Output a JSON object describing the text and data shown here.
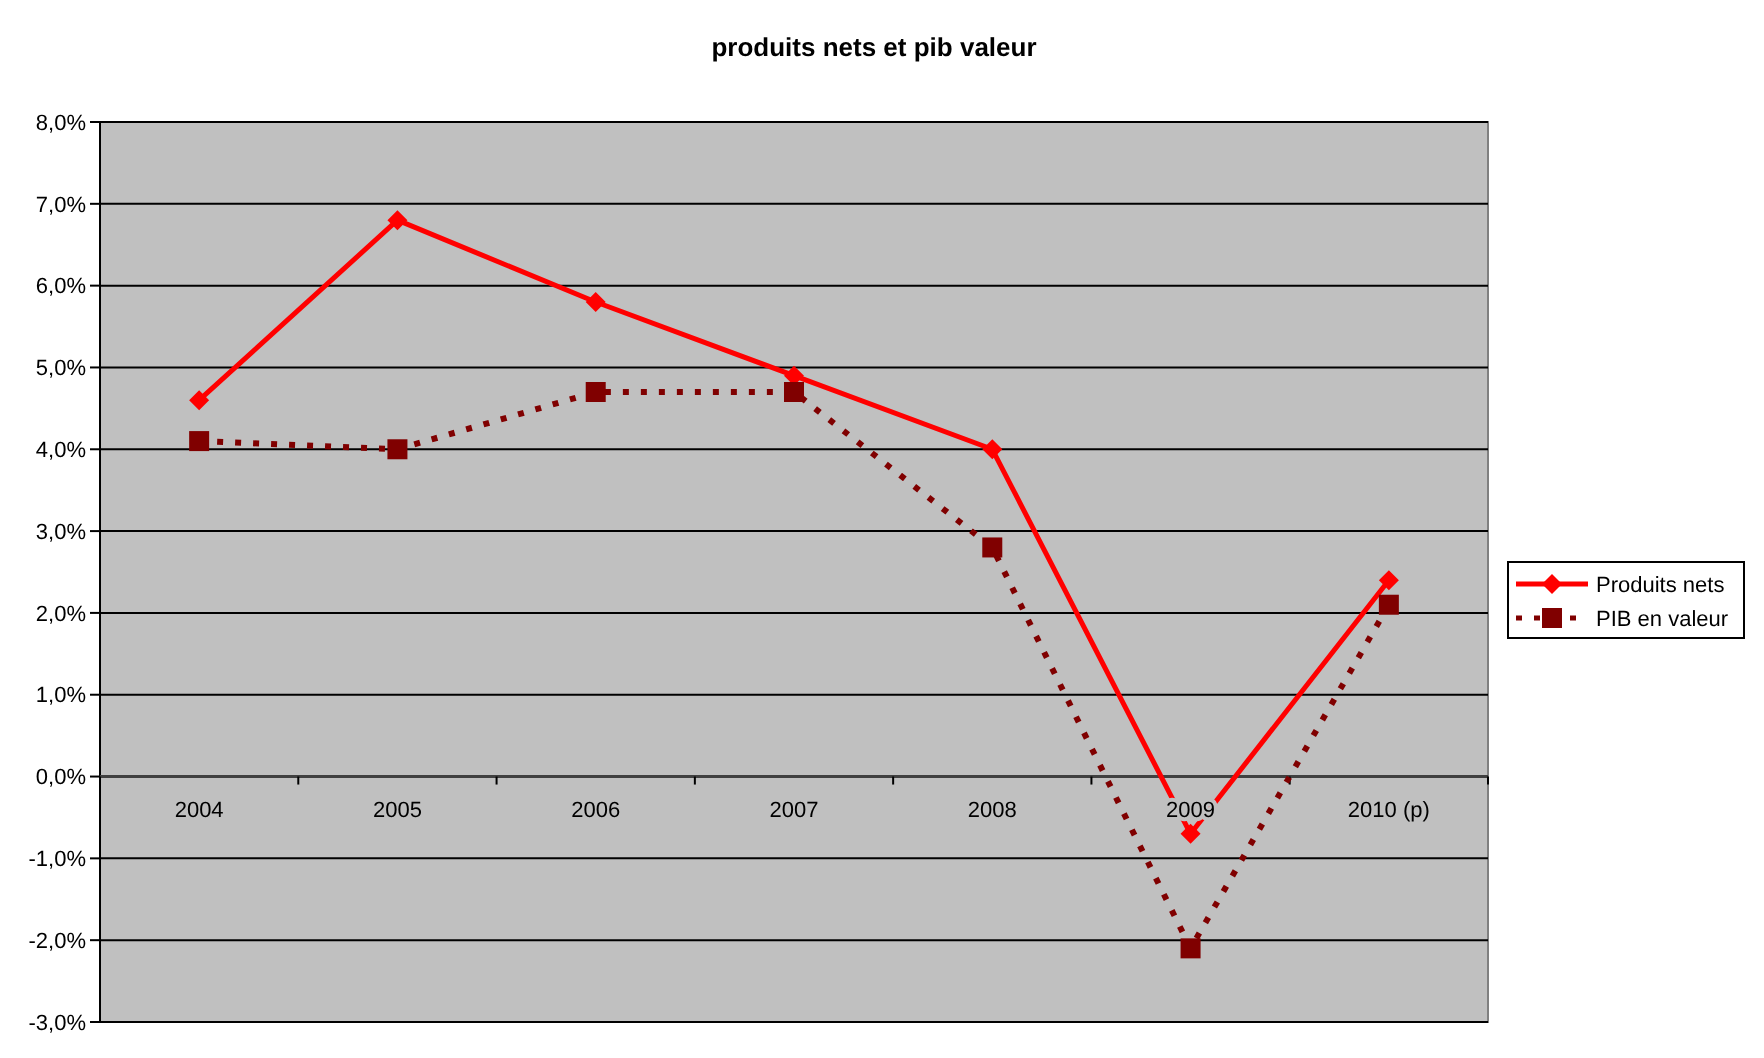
{
  "chart_data": {
    "type": "line",
    "title": "produits nets et pib valeur",
    "categories": [
      "2004",
      "2005",
      "2006",
      "2007",
      "2008",
      "2009",
      "2010 (p)"
    ],
    "series": [
      {
        "name": "Produits nets",
        "color": "#ff0000",
        "marker": "diamond",
        "line_style": "solid",
        "values": [
          4.6,
          6.8,
          5.8,
          4.9,
          4.0,
          -0.7,
          2.4
        ]
      },
      {
        "name": "PIB en valeur",
        "color": "#800000",
        "marker": "square",
        "line_style": "dotted",
        "values": [
          4.1,
          4.0,
          4.7,
          4.7,
          2.8,
          -2.1,
          2.1
        ]
      }
    ],
    "ylim": [
      -3,
      8
    ],
    "yticks": [
      {
        "value": -3,
        "label": "-3,0%"
      },
      {
        "value": -2,
        "label": "-2,0%"
      },
      {
        "value": -1,
        "label": "-1,0%"
      },
      {
        "value": 0,
        "label": "0,0%"
      },
      {
        "value": 1,
        "label": "1,0%"
      },
      {
        "value": 2,
        "label": "2,0%"
      },
      {
        "value": 3,
        "label": "3,0%"
      },
      {
        "value": 4,
        "label": "4,0%"
      },
      {
        "value": 5,
        "label": "5,0%"
      },
      {
        "value": 6,
        "label": "6,0%"
      },
      {
        "value": 7,
        "label": "7,0%"
      },
      {
        "value": 8,
        "label": "8,0%"
      }
    ],
    "grid": "y",
    "legend": "right"
  }
}
